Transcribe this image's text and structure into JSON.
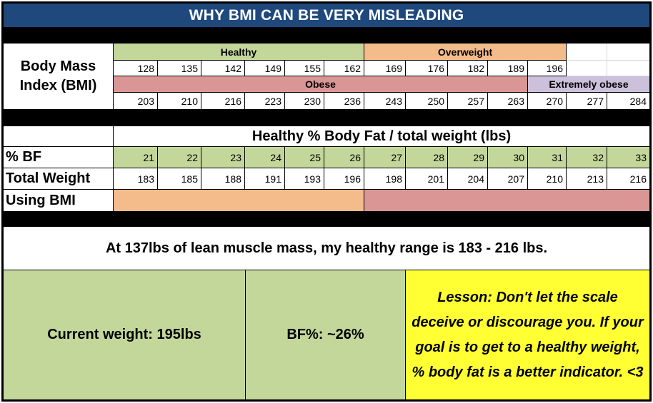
{
  "title": "WHY BMI CAN BE VERY MISLEADING",
  "bmi": {
    "label_line1": "Body Mass",
    "label_line2": "Index (BMI)",
    "upper_categories": [
      {
        "label": "Healthy",
        "color": "#c4d79b"
      },
      {
        "label": "Overweight",
        "color": "#f4bc8b"
      }
    ],
    "upper_values": [
      "128",
      "135",
      "142",
      "149",
      "155",
      "162",
      "169",
      "176",
      "182",
      "189",
      "196"
    ],
    "lower_categories": [
      {
        "label": "Obese",
        "color": "#da9694"
      },
      {
        "label": "Extremely obese",
        "color": "#ccc0da"
      }
    ],
    "lower_values": [
      "203",
      "210",
      "216",
      "223",
      "230",
      "236",
      "243",
      "250",
      "257",
      "263",
      "270",
      "277",
      "284"
    ]
  },
  "body_fat": {
    "header": "Healthy % Body Fat / total weight (lbs)",
    "bf_label": "% BF",
    "bf_values": [
      "21",
      "22",
      "23",
      "24",
      "25",
      "26",
      "27",
      "28",
      "29",
      "30",
      "31",
      "32",
      "33"
    ],
    "weight_label": "Total Weight",
    "weight_values": [
      "183",
      "185",
      "188",
      "191",
      "193",
      "196",
      "198",
      "201",
      "204",
      "207",
      "210",
      "213",
      "216"
    ],
    "bmi_label": "Using BMI",
    "bmi_colors": {
      "overweight": "#f4bc8b",
      "obese": "#da9694"
    }
  },
  "statement": "At 137lbs of lean muscle mass, my healthy range is 183 - 216 lbs.",
  "summary": {
    "current_weight": "Current weight: 195lbs",
    "bf_percent": "BF%: ~26%",
    "lesson": "Lesson:  Don't let the scale deceive or discourage you. If your goal is to get to a healthy weight, % body fat is a better indicator. <3"
  },
  "colors": {
    "title_bg": "#1f497d",
    "healthy": "#c4d79b",
    "lesson_bg": "#ffff33"
  }
}
